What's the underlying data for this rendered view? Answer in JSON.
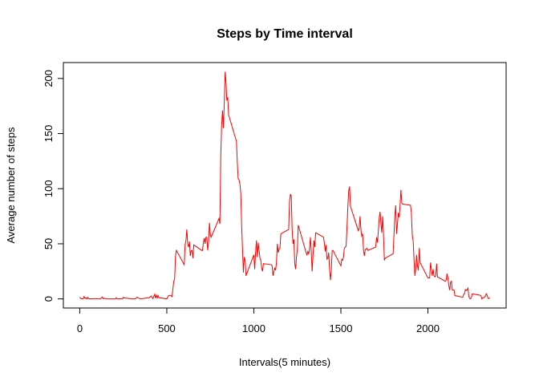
{
  "chart_data": {
    "type": "line",
    "title": "Steps by Time interval",
    "x_label": "Intervals(5 minutes)",
    "y_label": "Average number of steps",
    "color": "#ff0000",
    "xlim": [
      -94.2,
      2449.2
    ],
    "ylim": [
      -8.25,
      214.42
    ],
    "xticks": [
      0,
      500,
      1000,
      1500,
      2000
    ],
    "yticks": [
      0,
      50,
      100,
      150,
      200
    ],
    "x": [
      0,
      5,
      10,
      15,
      20,
      25,
      30,
      35,
      40,
      45,
      50,
      55,
      100,
      105,
      110,
      115,
      120,
      125,
      130,
      135,
      140,
      145,
      150,
      155,
      200,
      205,
      210,
      215,
      220,
      225,
      230,
      235,
      240,
      245,
      250,
      255,
      300,
      310,
      320,
      330,
      340,
      350,
      400,
      410,
      420,
      430,
      435,
      440,
      445,
      450,
      455,
      500,
      510,
      520,
      530,
      540,
      545,
      550,
      555,
      600,
      605,
      610,
      615,
      620,
      625,
      630,
      635,
      640,
      645,
      650,
      655,
      700,
      705,
      710,
      715,
      720,
      725,
      730,
      735,
      740,
      745,
      750,
      755,
      800,
      805,
      810,
      815,
      820,
      825,
      830,
      835,
      840,
      845,
      850,
      855,
      900,
      905,
      910,
      915,
      920,
      925,
      930,
      935,
      940,
      945,
      950,
      955,
      1000,
      1005,
      1010,
      1015,
      1020,
      1025,
      1030,
      1035,
      1040,
      1045,
      1050,
      1055,
      1100,
      1105,
      1110,
      1115,
      1120,
      1125,
      1130,
      1135,
      1140,
      1145,
      1150,
      1155,
      1200,
      1205,
      1210,
      1215,
      1220,
      1225,
      1230,
      1235,
      1240,
      1245,
      1250,
      1255,
      1300,
      1305,
      1310,
      1315,
      1320,
      1325,
      1330,
      1335,
      1340,
      1345,
      1350,
      1355,
      1400,
      1405,
      1410,
      1415,
      1420,
      1425,
      1430,
      1435,
      1440,
      1445,
      1450,
      1455,
      1500,
      1505,
      1510,
      1515,
      1520,
      1525,
      1530,
      1535,
      1540,
      1545,
      1550,
      1555,
      1600,
      1605,
      1610,
      1615,
      1620,
      1625,
      1630,
      1635,
      1640,
      1645,
      1650,
      1655,
      1700,
      1705,
      1710,
      1715,
      1720,
      1725,
      1730,
      1735,
      1740,
      1745,
      1750,
      1755,
      1800,
      1805,
      1810,
      1815,
      1820,
      1825,
      1830,
      1835,
      1840,
      1845,
      1850,
      1855,
      1900,
      1905,
      1910,
      1915,
      1920,
      1925,
      1930,
      1935,
      1940,
      1945,
      1950,
      1955,
      2000,
      2005,
      2010,
      2015,
      2020,
      2025,
      2030,
      2035,
      2040,
      2045,
      2050,
      2055,
      2100,
      2105,
      2110,
      2115,
      2120,
      2125,
      2130,
      2135,
      2140,
      2145,
      2150,
      2155,
      2200,
      2205,
      2210,
      2215,
      2220,
      2225,
      2230,
      2235,
      2240,
      2245,
      2250,
      2255,
      2300,
      2305,
      2310,
      2315,
      2320,
      2325,
      2330,
      2335,
      2340,
      2345,
      2350,
      2355
    ],
    "values": [
      1.7,
      0.3,
      0.1,
      0.2,
      0.1,
      2.1,
      0.5,
      0.9,
      0,
      1.5,
      0.3,
      0,
      0.3,
      0,
      0.2,
      0.3,
      0,
      1.1,
      1.8,
      0.2,
      0.2,
      0.4,
      0.3,
      0,
      0,
      0,
      1.1,
      0,
      0,
      0.1,
      0,
      0.2,
      0,
      0,
      1.5,
      0.9,
      0,
      0,
      0.2,
      1.6,
      0.5,
      0,
      1.2,
      2.6,
      0.3,
      4.1,
      0.7,
      3.5,
      0.8,
      3.1,
      1.1,
      0,
      3,
      3.3,
      2.1,
      16,
      18,
      39,
      44,
      31,
      49,
      53,
      63,
      50,
      47,
      52,
      39,
      44,
      44,
      37,
      49,
      44,
      44,
      51,
      55,
      50,
      56,
      56,
      44,
      52,
      69,
      58,
      56,
      73,
      68,
      129,
      158,
      171,
      155,
      177,
      206,
      196,
      180,
      183,
      167,
      143,
      124,
      109,
      108,
      104,
      96,
      66,
      45,
      24,
      38,
      35,
      21,
      40,
      27,
      42,
      53,
      38,
      51,
      44,
      37,
      35,
      28,
      25,
      32,
      31,
      30,
      21,
      25,
      28,
      26,
      33,
      50,
      42,
      45,
      46,
      59,
      63,
      88,
      95,
      93,
      63,
      50,
      54,
      32,
      27,
      38,
      45,
      67,
      42,
      40,
      43,
      41,
      46,
      56,
      42,
      25,
      40,
      53,
      47,
      60,
      56,
      51,
      43,
      49,
      36,
      37,
      42,
      27,
      17,
      26,
      44,
      44,
      30,
      36,
      35,
      38,
      46,
      47,
      48,
      65,
      83,
      98,
      102,
      84,
      62,
      64,
      75,
      63,
      57,
      59,
      44,
      39,
      45,
      45,
      46,
      44,
      47,
      56,
      51,
      61,
      73,
      79,
      69,
      60,
      75,
      57,
      35,
      37,
      41,
      58,
      75,
      85,
      59,
      68,
      78,
      74,
      85,
      99,
      87,
      86,
      85,
      78,
      58,
      53,
      36,
      21,
      27,
      40,
      30,
      26,
      46,
      33,
      19,
      19,
      19,
      33,
      27,
      21,
      27,
      21,
      20,
      21,
      32,
      20,
      16,
      17,
      23,
      19,
      12,
      8,
      15,
      16,
      8,
      8,
      8,
      3,
      1.5,
      4,
      4.8,
      8.5,
      7.5,
      8.1,
      9.8,
      2.2,
      0.3,
      0.1,
      1.6,
      4.6,
      3.3,
      2.8,
      0,
      0.8,
      1,
      1.6,
      2.6,
      4.7,
      3.3,
      0.6,
      0.2,
      1.1
    ]
  }
}
